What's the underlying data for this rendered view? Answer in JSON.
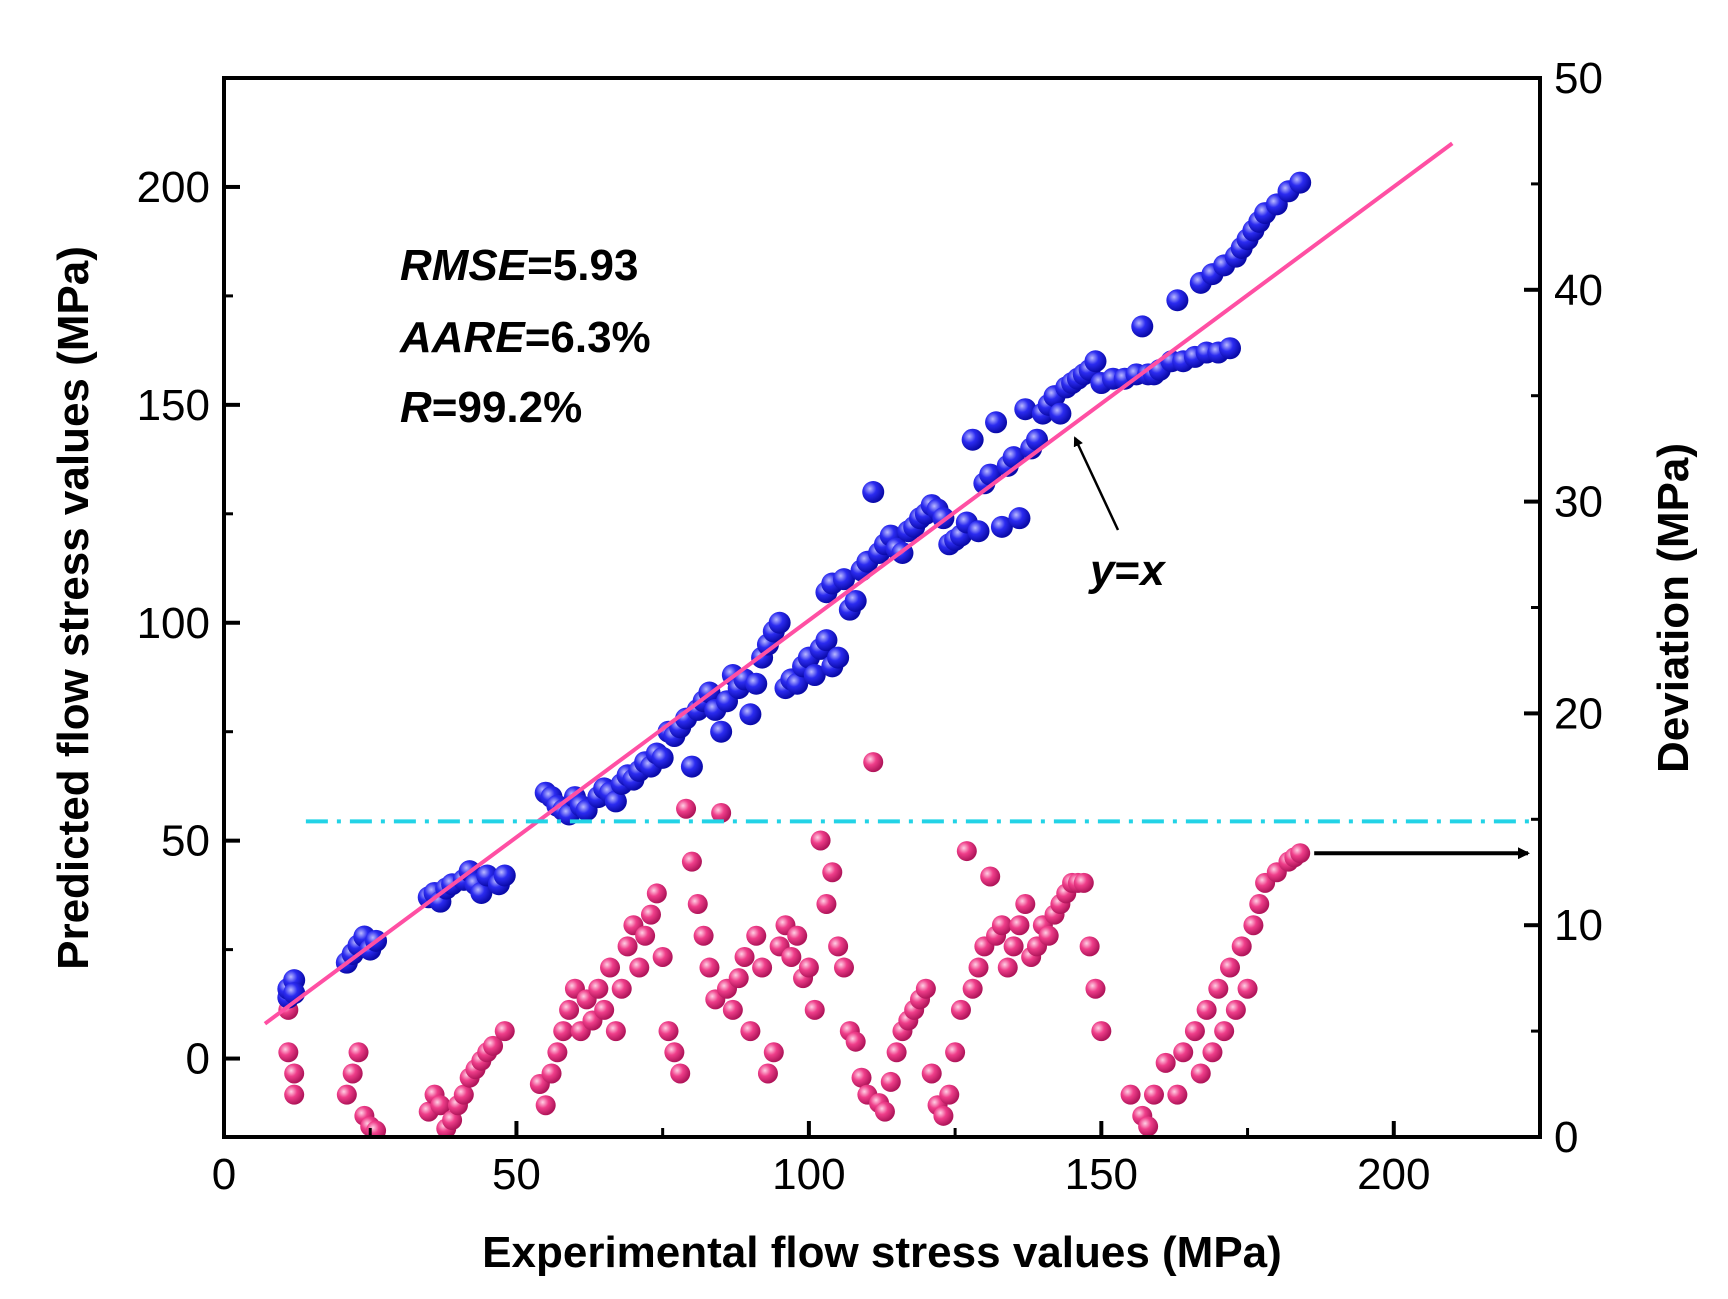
{
  "chart_data": {
    "type": "scatter",
    "xlabel": "Experimental flow stress values (MPa)",
    "ylabel": "Predicted flow stress values (MPa)",
    "y2label": "Deviation (MPa)",
    "xlim": [
      0,
      225
    ],
    "ylim": [
      -18,
      225
    ],
    "y2lim": [
      0,
      50
    ],
    "x_ticks": [
      "0",
      "50",
      "100",
      "150",
      "200"
    ],
    "y_ticks": [
      "0",
      "50",
      "100",
      "150",
      "200"
    ],
    "y2_ticks": [
      "0",
      "10",
      "20",
      "30",
      "40",
      "50"
    ],
    "grid": false,
    "annotations": {
      "rmse_name": "RMSE",
      "rmse_value": "=5.93",
      "aare_name": "AARE",
      "aare_value": "=6.3%",
      "r_name": "R",
      "r_value": "=99.2%",
      "yx_label_y": "y",
      "yx_label_eq": "=",
      "yx_label_x": "x"
    },
    "colors": {
      "predicted": "#1a1ae6",
      "deviation": "#e8337a",
      "fit_line": "#ff4fa3",
      "threshold": "#22d3e6",
      "arrow": "#000000"
    },
    "fit_line": {
      "from": [
        7,
        8
      ],
      "to": [
        210,
        210
      ]
    },
    "threshold_deviation": 14.9,
    "series": [
      {
        "axis": "left",
        "values": [
          [
            11,
            14
          ],
          [
            11,
            16
          ],
          [
            12,
            18
          ],
          [
            12,
            15
          ],
          [
            21,
            22
          ],
          [
            22,
            24
          ],
          [
            23,
            26
          ],
          [
            24,
            28
          ],
          [
            25,
            25
          ],
          [
            26,
            27
          ],
          [
            35,
            37
          ],
          [
            36,
            38
          ],
          [
            37,
            36
          ],
          [
            38,
            39
          ],
          [
            39,
            40
          ],
          [
            41,
            41
          ],
          [
            42,
            43
          ],
          [
            43,
            40
          ],
          [
            44,
            38
          ],
          [
            45,
            42
          ],
          [
            47,
            40
          ],
          [
            48,
            42
          ],
          [
            55,
            61
          ],
          [
            56,
            60
          ],
          [
            57,
            58
          ],
          [
            58,
            57
          ],
          [
            59,
            56
          ],
          [
            60,
            60
          ],
          [
            61,
            58
          ],
          [
            62,
            57
          ],
          [
            64,
            60
          ],
          [
            65,
            62
          ],
          [
            66,
            61
          ],
          [
            67,
            59
          ],
          [
            68,
            63
          ],
          [
            69,
            65
          ],
          [
            70,
            64
          ],
          [
            71,
            66
          ],
          [
            72,
            68
          ],
          [
            73,
            67
          ],
          [
            74,
            70
          ],
          [
            75,
            69
          ],
          [
            76,
            75
          ],
          [
            77,
            74
          ],
          [
            78,
            76
          ],
          [
            79,
            78
          ],
          [
            80,
            67
          ],
          [
            81,
            80
          ],
          [
            82,
            82
          ],
          [
            83,
            84
          ],
          [
            84,
            80
          ],
          [
            85,
            75
          ],
          [
            86,
            82
          ],
          [
            87,
            88
          ],
          [
            88,
            85
          ],
          [
            89,
            87
          ],
          [
            90,
            79
          ],
          [
            91,
            86
          ],
          [
            92,
            92
          ],
          [
            93,
            95
          ],
          [
            94,
            98
          ],
          [
            95,
            100
          ],
          [
            96,
            85
          ],
          [
            97,
            87
          ],
          [
            98,
            86
          ],
          [
            99,
            90
          ],
          [
            100,
            92
          ],
          [
            101,
            88
          ],
          [
            102,
            94
          ],
          [
            103,
            96
          ],
          [
            104,
            90
          ],
          [
            105,
            92
          ],
          [
            103,
            107
          ],
          [
            104,
            109
          ],
          [
            106,
            110
          ],
          [
            107,
            103
          ],
          [
            108,
            105
          ],
          [
            109,
            112
          ],
          [
            110,
            114
          ],
          [
            111,
            130
          ],
          [
            112,
            116
          ],
          [
            113,
            118
          ],
          [
            114,
            120
          ],
          [
            115,
            117
          ],
          [
            116,
            116
          ],
          [
            117,
            121
          ],
          [
            118,
            122
          ],
          [
            119,
            124
          ],
          [
            120,
            125
          ],
          [
            121,
            127
          ],
          [
            122,
            126
          ],
          [
            123,
            124
          ],
          [
            124,
            118
          ],
          [
            125,
            119
          ],
          [
            126,
            120
          ],
          [
            127,
            123
          ],
          [
            128,
            142
          ],
          [
            129,
            121
          ],
          [
            130,
            132
          ],
          [
            131,
            134
          ],
          [
            132,
            146
          ],
          [
            133,
            122
          ],
          [
            134,
            136
          ],
          [
            135,
            138
          ],
          [
            136,
            124
          ],
          [
            137,
            149
          ],
          [
            138,
            140
          ],
          [
            139,
            142
          ],
          [
            140,
            148
          ],
          [
            141,
            150
          ],
          [
            142,
            152
          ],
          [
            143,
            148
          ],
          [
            144,
            154
          ],
          [
            145,
            155
          ],
          [
            146,
            156
          ],
          [
            147,
            157
          ],
          [
            148,
            158
          ],
          [
            149,
            160
          ],
          [
            150,
            155
          ],
          [
            152,
            156
          ],
          [
            154,
            156
          ],
          [
            156,
            157
          ],
          [
            157,
            168
          ],
          [
            158,
            157
          ],
          [
            159,
            157
          ],
          [
            160,
            158
          ],
          [
            162,
            160
          ],
          [
            163,
            174
          ],
          [
            164,
            160
          ],
          [
            166,
            161
          ],
          [
            167,
            178
          ],
          [
            168,
            162
          ],
          [
            169,
            180
          ],
          [
            170,
            162
          ],
          [
            171,
            182
          ],
          [
            172,
            163
          ],
          [
            173,
            184
          ],
          [
            174,
            186
          ],
          [
            175,
            188
          ],
          [
            176,
            190
          ],
          [
            177,
            192
          ],
          [
            178,
            194
          ],
          [
            180,
            196
          ],
          [
            182,
            199
          ],
          [
            184,
            201
          ]
        ]
      },
      {
        "axis": "right",
        "values": [
          [
            11,
            6
          ],
          [
            11,
            4
          ],
          [
            12,
            3
          ],
          [
            12,
            2
          ],
          [
            21,
            2
          ],
          [
            22,
            3
          ],
          [
            23,
            4
          ],
          [
            24,
            1
          ],
          [
            25,
            0.5
          ],
          [
            26,
            0.3
          ],
          [
            35,
            1.2
          ],
          [
            36,
            2
          ],
          [
            37,
            1.5
          ],
          [
            38,
            0.4
          ],
          [
            39,
            0.8
          ],
          [
            40,
            1.5
          ],
          [
            41,
            2
          ],
          [
            42,
            2.8
          ],
          [
            43,
            3.2
          ],
          [
            44,
            3.6
          ],
          [
            45,
            4
          ],
          [
            46,
            4.3
          ],
          [
            48,
            5
          ],
          [
            54,
            2.5
          ],
          [
            55,
            1.5
          ],
          [
            56,
            3
          ],
          [
            57,
            4
          ],
          [
            58,
            5
          ],
          [
            59,
            6
          ],
          [
            60,
            7
          ],
          [
            61,
            5
          ],
          [
            62,
            6.5
          ],
          [
            63,
            5.5
          ],
          [
            64,
            7
          ],
          [
            65,
            6
          ],
          [
            66,
            8
          ],
          [
            67,
            5
          ],
          [
            68,
            7
          ],
          [
            69,
            9
          ],
          [
            70,
            10
          ],
          [
            71,
            8
          ],
          [
            72,
            9.5
          ],
          [
            73,
            10.5
          ],
          [
            74,
            11.5
          ],
          [
            75,
            8.5
          ],
          [
            76,
            5
          ],
          [
            77,
            4
          ],
          [
            78,
            3
          ],
          [
            79,
            15.5
          ],
          [
            80,
            13
          ],
          [
            81,
            11
          ],
          [
            82,
            9.5
          ],
          [
            83,
            8
          ],
          [
            84,
            6.5
          ],
          [
            85,
            15.3
          ],
          [
            86,
            7
          ],
          [
            87,
            6
          ],
          [
            88,
            7.5
          ],
          [
            89,
            8.5
          ],
          [
            90,
            5
          ],
          [
            91,
            9.5
          ],
          [
            92,
            8
          ],
          [
            93,
            3
          ],
          [
            94,
            4
          ],
          [
            95,
            9
          ],
          [
            96,
            10
          ],
          [
            97,
            8.5
          ],
          [
            98,
            9.5
          ],
          [
            99,
            7.5
          ],
          [
            100,
            8
          ],
          [
            101,
            6
          ],
          [
            102,
            14
          ],
          [
            103,
            11
          ],
          [
            104,
            12.5
          ],
          [
            105,
            9
          ],
          [
            106,
            8
          ],
          [
            107,
            5
          ],
          [
            108,
            4.5
          ],
          [
            109,
            2.8
          ],
          [
            110,
            2
          ],
          [
            111,
            17.7
          ],
          [
            112,
            1.6
          ],
          [
            113,
            1.2
          ],
          [
            114,
            2.6
          ],
          [
            115,
            4
          ],
          [
            116,
            5
          ],
          [
            117,
            5.5
          ],
          [
            118,
            6
          ],
          [
            119,
            6.5
          ],
          [
            120,
            7
          ],
          [
            121,
            3
          ],
          [
            122,
            1.5
          ],
          [
            123,
            1
          ],
          [
            124,
            2
          ],
          [
            125,
            4
          ],
          [
            126,
            6
          ],
          [
            127,
            13.5
          ],
          [
            128,
            7
          ],
          [
            129,
            8
          ],
          [
            130,
            9
          ],
          [
            131,
            12.3
          ],
          [
            132,
            9.5
          ],
          [
            133,
            10
          ],
          [
            134,
            8
          ],
          [
            135,
            9
          ],
          [
            136,
            10
          ],
          [
            137,
            11
          ],
          [
            138,
            8.5
          ],
          [
            139,
            9
          ],
          [
            140,
            10
          ],
          [
            141,
            9.5
          ],
          [
            142,
            10.5
          ],
          [
            143,
            11
          ],
          [
            144,
            11.5
          ],
          [
            145,
            12
          ],
          [
            146,
            12
          ],
          [
            147,
            12
          ],
          [
            148,
            9
          ],
          [
            149,
            7
          ],
          [
            150,
            5
          ],
          [
            155,
            2
          ],
          [
            157,
            1
          ],
          [
            158,
            0.5
          ],
          [
            159,
            2
          ],
          [
            161,
            3.5
          ],
          [
            163,
            2
          ],
          [
            164,
            4
          ],
          [
            166,
            5
          ],
          [
            167,
            3
          ],
          [
            168,
            6
          ],
          [
            169,
            4
          ],
          [
            170,
            7
          ],
          [
            171,
            5
          ],
          [
            172,
            8
          ],
          [
            173,
            6
          ],
          [
            174,
            9
          ],
          [
            175,
            7
          ],
          [
            176,
            10
          ],
          [
            177,
            11
          ],
          [
            178,
            12
          ],
          [
            180,
            12.5
          ],
          [
            182,
            13
          ],
          [
            183,
            13.2
          ],
          [
            184,
            13.4
          ]
        ]
      }
    ]
  }
}
